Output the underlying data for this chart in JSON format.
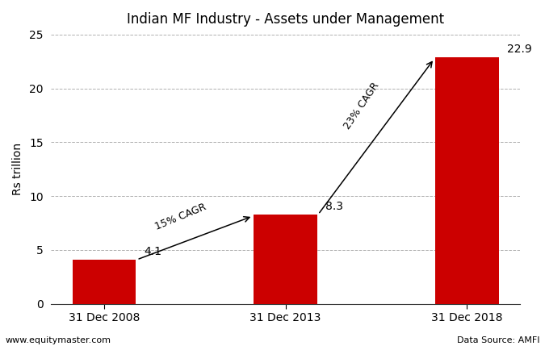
{
  "title": "Indian MF Industry - Assets under Management",
  "categories": [
    "31 Dec 2008",
    "31 Dec 2013",
    "31 Dec 2018"
  ],
  "values": [
    4.1,
    8.3,
    22.9
  ],
  "bar_color": "#cc0000",
  "ylabel": "Rs trillion",
  "ylim": [
    0,
    25
  ],
  "yticks": [
    0,
    5,
    10,
    15,
    20,
    25
  ],
  "bar_width": 0.35,
  "annotation1_text": "15% CAGR",
  "annotation2_text": "23% CAGR",
  "footer_left": "www.equitymaster.com",
  "footer_right": "Data Source: AMFI",
  "grid_color": "#b0b0b0",
  "background_color": "#ffffff",
  "title_fontsize": 12,
  "label_fontsize": 10,
  "tick_fontsize": 10,
  "footer_fontsize": 8,
  "annot_fontsize": 9
}
